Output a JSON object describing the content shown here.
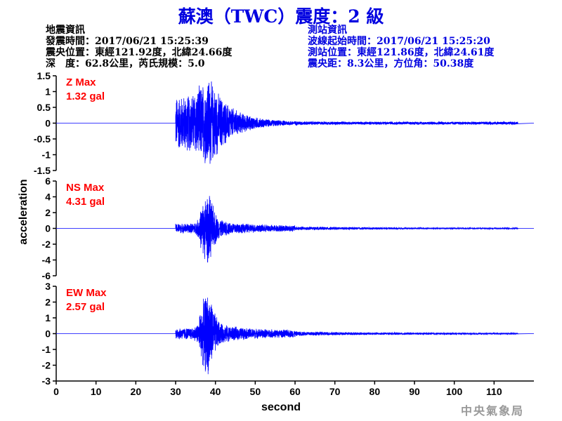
{
  "title": "蘇澳（TWC）震度：2 級",
  "quake_info": {
    "heading": "地震資訊",
    "origin_time": "發震時間：2017/06/21 15:25:39",
    "epicenter": "震央位置：東經121.92度，北緯24.66度",
    "depth_magnitude": "深　度：62.8公里，芮氏規模：5.0"
  },
  "station_info": {
    "heading": "測站資訊",
    "wave_start": "波線起始時間：2017/06/21 15:25:20",
    "station_location": "測站位置：東經121.86度，北緯24.61度",
    "distance_azimuth": "震央距：8.3公里，方位角：50.38度"
  },
  "footer": "中央氣象局",
  "colors": {
    "trace": "#0000ff",
    "label": "#ff0000",
    "title": "#0000e0"
  },
  "chart_data": {
    "type": "line",
    "xlabel": "second",
    "ylabel": "acceleration",
    "xlim": [
      0,
      120
    ],
    "xticks": [
      0,
      10,
      20,
      30,
      40,
      50,
      60,
      70,
      80,
      90,
      100,
      110
    ],
    "grid": false,
    "panels": [
      {
        "name": "Z",
        "label1": "Z Max",
        "label2": "1.32 gal",
        "peak": 1.32,
        "ylim": [
          -1.5,
          1.5
        ],
        "yticks": [
          1.5,
          1,
          0.5,
          0,
          -0.5,
          -1,
          -1.5
        ],
        "onset_s": 30
      },
      {
        "name": "NS",
        "label1": "NS Max",
        "label2": "4.31 gal",
        "peak": 4.31,
        "ylim": [
          -6,
          6
        ],
        "yticks": [
          6,
          4,
          2,
          0,
          -2,
          -4,
          -6
        ],
        "onset_s": 30
      },
      {
        "name": "EW",
        "label1": "EW Max",
        "label2": "2.57 gal",
        "peak": 2.57,
        "ylim": [
          -3,
          3
        ],
        "yticks": [
          3,
          2,
          1,
          0,
          -1,
          -2,
          -3
        ],
        "onset_s": 30
      }
    ]
  }
}
